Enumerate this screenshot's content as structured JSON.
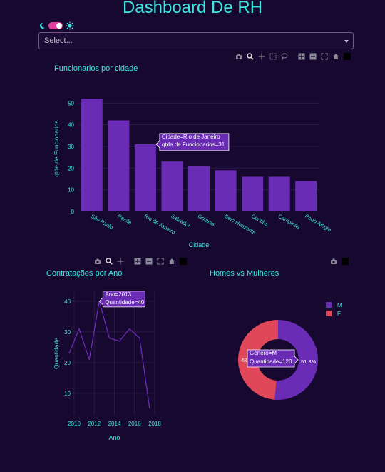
{
  "header": {
    "title": "Dashboard De RH"
  },
  "theme_toggle": {
    "state": "on",
    "accent": "#e040a0"
  },
  "dropdown": {
    "placeholder": "Select..."
  },
  "colors": {
    "bar": "#6a2bb5",
    "line": "#6a2bb5",
    "text": "#3ee6e0",
    "pie_m": "#6a2bb5",
    "pie_f": "#e0485a",
    "background": "#16082e"
  },
  "chart_data": [
    {
      "type": "bar",
      "title": "Funcionarios por cidade",
      "xlabel": "Cidade",
      "ylabel": "qtde de Funcionarios",
      "categories": [
        "São Paulo",
        "Recife",
        "Rio de Janeiro",
        "Salvador",
        "Goiânia",
        "Belo Horizonte",
        "Curitiba",
        "Campinas",
        "Porto Alegre"
      ],
      "values": [
        52,
        42,
        31,
        23,
        21,
        19,
        16,
        16,
        14
      ],
      "ylim": [
        0,
        58
      ],
      "yticks": [
        0,
        10,
        20,
        30,
        40,
        50
      ],
      "tooltip": {
        "line1": "Cidade=Rio de Janeiro",
        "line2": "qtde de Funcionarios=31",
        "index": 2
      }
    },
    {
      "type": "line",
      "title": "Contratações por Ano",
      "xlabel": "Ano",
      "ylabel": "Quantidade",
      "x": [
        2009.5,
        2010.5,
        2011.5,
        2012.5,
        2013.5,
        2014.5,
        2015.5,
        2016.5,
        2017.5
      ],
      "values": [
        23,
        31,
        21,
        40,
        28,
        27,
        31,
        28,
        5
      ],
      "xticks": [
        "2010",
        "2012",
        "2014",
        "2016",
        "2018"
      ],
      "yticks": [
        10,
        20,
        30,
        40
      ],
      "tooltip": {
        "line1": "Ano=2013",
        "line2": "Quantidade=40",
        "index": 3
      }
    },
    {
      "type": "pie",
      "title": "Homes vs Mulheres",
      "labels": [
        "M",
        "F"
      ],
      "values": [
        51.3,
        48.7
      ],
      "label_m": "51.3%",
      "label_f": "48.",
      "tooltip": {
        "line1": "Genero=M",
        "line2": "Quantidade=120"
      }
    }
  ]
}
